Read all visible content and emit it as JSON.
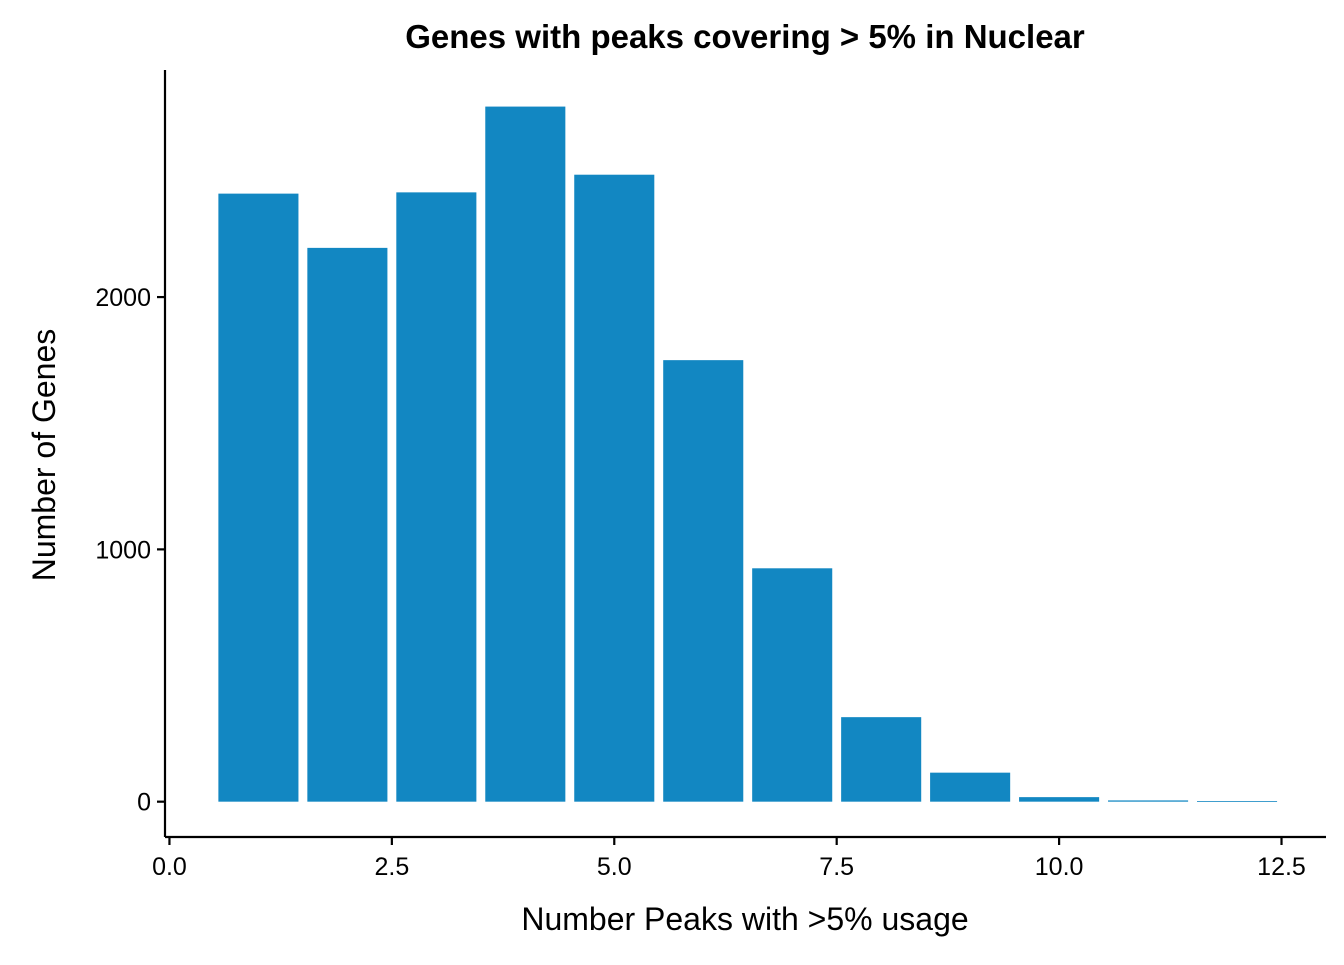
{
  "chart_data": {
    "type": "bar",
    "title": "Genes with peaks covering > 5% in Nuclear",
    "xlabel": "Number Peaks with >5% usage",
    "ylabel": "Number of Genes",
    "x": [
      1,
      2,
      3,
      4,
      5,
      6,
      7,
      8,
      9,
      10,
      11,
      12
    ],
    "values": [
      2410,
      2195,
      2415,
      2755,
      2485,
      1750,
      925,
      335,
      115,
      18,
      5,
      2
    ],
    "xlim": [
      -0.05,
      13.0
    ],
    "ylim": [
      -140,
      2900
    ],
    "xticks": [
      0.0,
      2.5,
      5.0,
      7.5,
      10.0,
      12.5
    ],
    "xtick_labels": [
      "0.0",
      "2.5",
      "5.0",
      "7.5",
      "10.0",
      "12.5"
    ],
    "yticks": [
      0,
      1000,
      2000
    ],
    "ytick_labels": [
      "0",
      "1000",
      "2000"
    ],
    "bar_color": "#1287C2",
    "grid": false,
    "legend": "none"
  }
}
